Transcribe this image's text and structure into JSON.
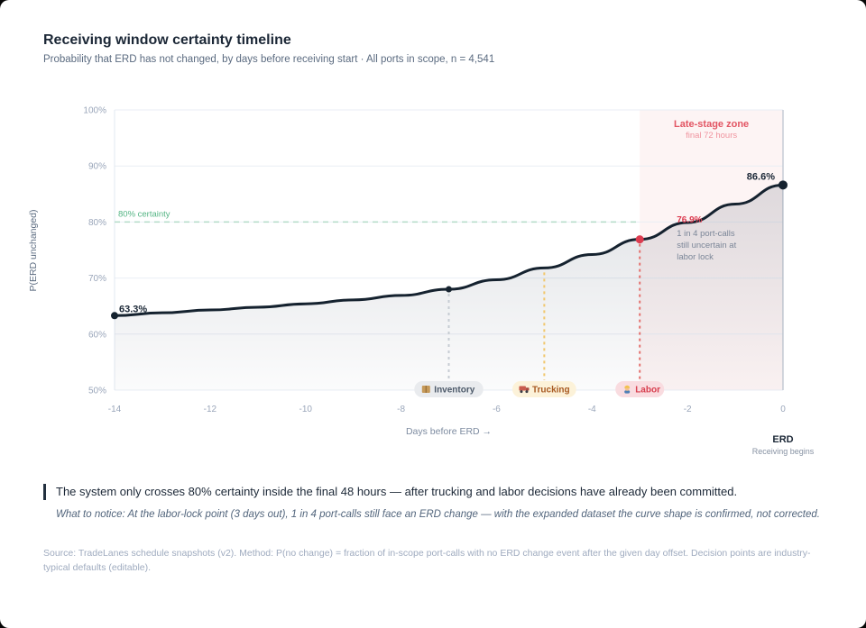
{
  "header": {
    "title": "Receiving window certainty timeline",
    "subtitle": "Probability that ERD has not changed, by days before receiving start · All ports in scope, n = 4,541"
  },
  "chart_data": {
    "type": "line",
    "series_name": "P(ERD unchanged)",
    "x": [
      -14,
      -13,
      -12,
      -11,
      -10,
      -9,
      -8,
      -7,
      -6,
      -5,
      -4,
      -3,
      -2,
      -1,
      0
    ],
    "values": [
      63.3,
      63.8,
      64.3,
      64.8,
      65.4,
      66.1,
      66.9,
      68.0,
      69.7,
      71.8,
      74.2,
      76.9,
      79.9,
      83.2,
      86.6
    ],
    "xlim": [
      -14,
      0
    ],
    "ylim": [
      50,
      100
    ],
    "xticks": [
      -14,
      -12,
      -10,
      -8,
      -6,
      -4,
      -2,
      0
    ],
    "yticks": [
      50,
      60,
      70,
      80,
      90,
      100
    ],
    "xlabel": "Days before ERD →",
    "ylabel": "P(ERD unchanged)",
    "threshold": {
      "value": 80,
      "label": "80% certainty"
    },
    "zone": {
      "from_day": -3,
      "to_day": 0,
      "label": "Late-stage zone",
      "sublabel": "final 72 hours"
    },
    "markers": [
      {
        "day": -14,
        "value": 63.3,
        "label": "63.3%"
      },
      {
        "day": -7,
        "value": 68.0
      },
      {
        "day": -3,
        "value": 76.9,
        "label": "76.9%",
        "highlight": true
      },
      {
        "day": 0,
        "value": 86.6,
        "label": "86.6%"
      }
    ],
    "annotation": {
      "lines": [
        "1 in 4 port-calls",
        "still uncertain at",
        "labor lock"
      ]
    },
    "decision_points": [
      {
        "day": -7,
        "label": "Inventory",
        "icon": "package-icon",
        "line_color": "#c6ccd3",
        "pill_bg": "#e9ebee",
        "text_color": "#4d5a6a"
      },
      {
        "day": -5,
        "label": "Trucking",
        "icon": "truck-icon",
        "line_color": "#f1c76c",
        "pill_bg": "#fcf2d9",
        "text_color": "#a85a22"
      },
      {
        "day": -3,
        "label": "Labor",
        "icon": "worker-icon",
        "line_color": "#e4716e",
        "pill_bg": "#f9dce0",
        "text_color": "#d84050"
      }
    ],
    "end_axis": {
      "title": "ERD",
      "subtitle": "Receiving begins"
    },
    "colors": {
      "curve": "#15222f",
      "zone_bg": "#fdf4f4",
      "zone_label": "#e25563",
      "zone_sublabel": "#f0949f",
      "threshold_line": "#b3dcc8",
      "threshold_text": "#53b483",
      "highlight": "#dc3c50",
      "grid": "#e9eef4",
      "erd_line": "#c6ccd6",
      "tick_text": "#9aa6ba",
      "annotation_text": "#7b8698"
    }
  },
  "callout": {
    "text": "The system only crosses 80% certainty inside the final 48 hours — after trucking and labor decisions have already been committed.",
    "note": "What to notice: At the labor-lock point (3 days out), 1 in 4 port-calls still face an ERD change — with the expanded dataset the curve shape is confirmed, not corrected."
  },
  "footer": {
    "text": "Source: TradeLanes schedule snapshots (v2). Method: P(no change) = fraction of in-scope port-calls with no ERD change event after the given day offset. Decision points are industry-typical defaults (editable)."
  }
}
